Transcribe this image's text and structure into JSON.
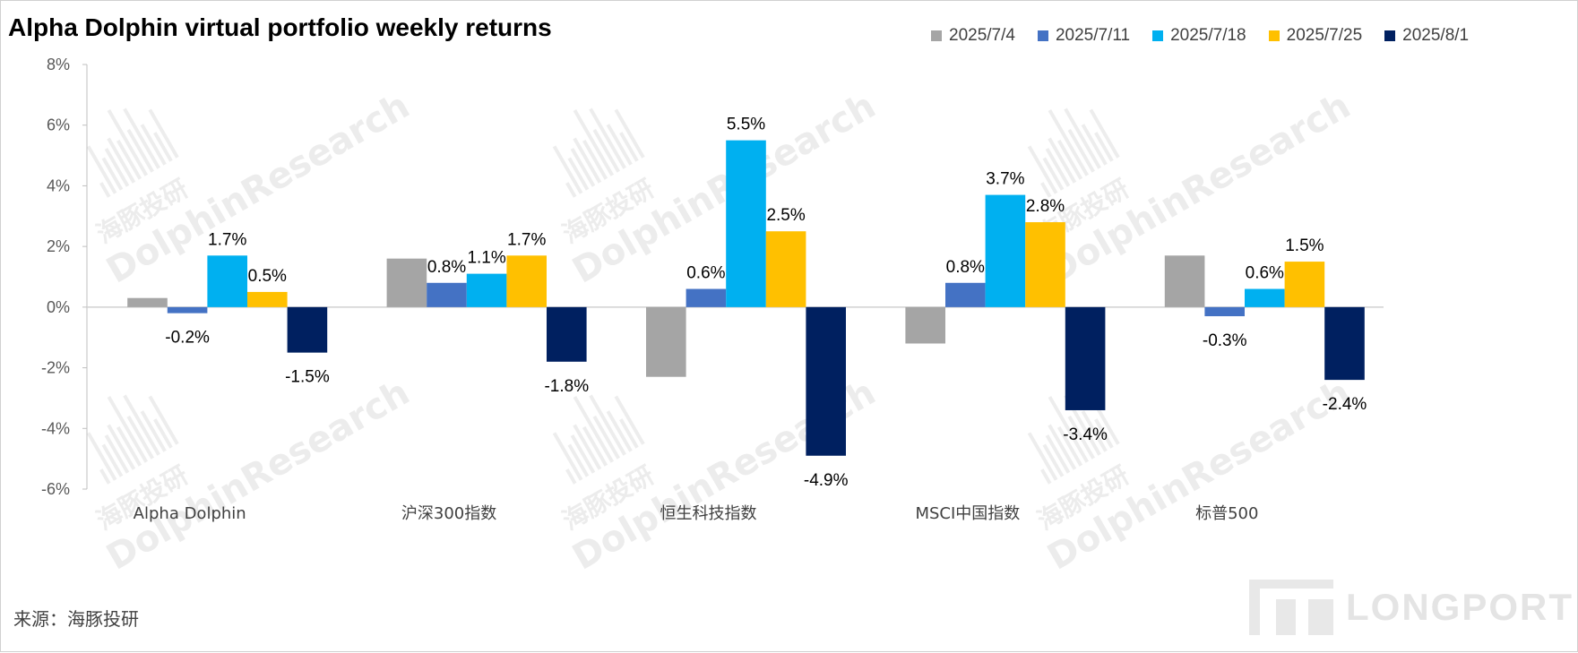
{
  "title": "Alpha Dolphin virtual portfolio weekly returns",
  "source": "来源：海豚投研",
  "brand": "LONGPORT",
  "watermark": {
    "cn": "海豚投研",
    "en": "DolphinResearch"
  },
  "colors": {
    "2025/7/4": "#a5a5a5",
    "2025/7/11": "#4472c4",
    "2025/7/18": "#00b0f0",
    "2025/7/25": "#ffc000",
    "2025/8/1": "#002060"
  },
  "chart_data": {
    "type": "bar",
    "title": "Alpha Dolphin virtual portfolio weekly returns",
    "categories": [
      "Alpha Dolphin",
      "沪深300指数",
      "恒生科技指数",
      "MSCI中国指数",
      "标普500"
    ],
    "ylim": [
      -6,
      8
    ],
    "yticks": [
      "8%",
      "6%",
      "4%",
      "2%",
      "0%",
      "-2%",
      "-4%",
      "-6%"
    ],
    "ytick_values": [
      8,
      6,
      4,
      2,
      0,
      -2,
      -4,
      -6
    ],
    "legend_position": "top-right",
    "grid": false,
    "series": [
      {
        "name": "2025/7/4",
        "color": "#a5a5a5",
        "values": [
          0.3,
          1.6,
          -2.3,
          -1.2,
          1.7
        ],
        "labels": [
          "",
          "",
          "",
          "",
          ""
        ]
      },
      {
        "name": "2025/7/11",
        "color": "#4472c4",
        "values": [
          -0.2,
          0.8,
          0.6,
          0.8,
          -0.3
        ],
        "labels": [
          "-0.2%",
          "0.8%",
          "0.6%",
          "0.8%",
          "-0.3%"
        ]
      },
      {
        "name": "2025/7/18",
        "color": "#00b0f0",
        "values": [
          1.7,
          1.1,
          5.5,
          3.7,
          0.6
        ],
        "labels": [
          "1.7%",
          "1.1%",
          "5.5%",
          "3.7%",
          "0.6%"
        ]
      },
      {
        "name": "2025/7/25",
        "color": "#ffc000",
        "values": [
          0.5,
          1.7,
          2.5,
          2.8,
          1.5
        ],
        "labels": [
          "0.5%",
          "1.7%",
          "2.5%",
          "2.8%",
          "1.5%"
        ]
      },
      {
        "name": "2025/8/1",
        "color": "#002060",
        "values": [
          -1.5,
          -1.8,
          -4.9,
          -3.4,
          -2.4
        ],
        "labels": [
          "-1.5%",
          "-1.8%",
          "-4.9%",
          "-3.4%",
          "-2.4%"
        ]
      }
    ]
  }
}
